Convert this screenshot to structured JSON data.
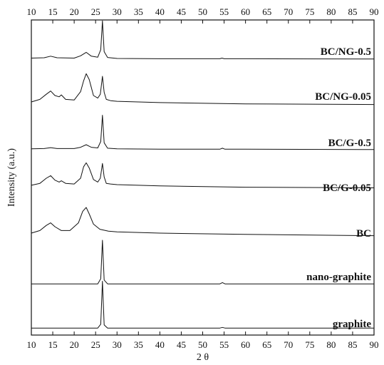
{
  "chart_data": {
    "type": "line",
    "xlabel": "2 θ",
    "ylabel": "Intensity (a.u.)",
    "xlim": [
      10,
      90
    ],
    "x_ticks": [
      "10",
      "15",
      "20",
      "25",
      "30",
      "35",
      "40",
      "45",
      "50",
      "55",
      "60",
      "65",
      "70",
      "75",
      "80",
      "85",
      "90"
    ],
    "grid": false,
    "legend": "none",
    "series": [
      {
        "name": "BC/NG-0.5",
        "x": [
          10,
          13,
          14.5,
          16,
          20,
          21.5,
          22.8,
          24,
          25.5,
          26.2,
          26.6,
          27.0,
          27.8,
          30,
          40,
          54,
          54.5,
          55,
          60,
          90
        ],
        "y": [
          5.0,
          5.5,
          8.0,
          5.5,
          5.0,
          8.5,
          14.0,
          8.0,
          6.5,
          18.0,
          63.0,
          15.0,
          6.0,
          4.5,
          4.0,
          4.0,
          5.0,
          4.0,
          4.0,
          3.5
        ]
      },
      {
        "name": "BC/NG-0.05",
        "x": [
          10,
          12,
          13.5,
          14.5,
          15.5,
          16.5,
          17.0,
          18.0,
          20,
          21.5,
          22.2,
          22.8,
          23.5,
          24.5,
          25.5,
          26.1,
          26.6,
          27.0,
          27.5,
          28.5,
          30,
          40,
          60,
          90
        ],
        "y": [
          10,
          14,
          22,
          27,
          20,
          18,
          21,
          14,
          13,
          26,
          43,
          54,
          45,
          20,
          16,
          22,
          50,
          25,
          14,
          12,
          11,
          9,
          7,
          6
        ]
      },
      {
        "name": "BC/G-0.5",
        "x": [
          10,
          13,
          14.5,
          16,
          20,
          21.5,
          22.8,
          24,
          25.5,
          26.2,
          26.6,
          27.0,
          27.8,
          30,
          40,
          54,
          54.6,
          55.2,
          60,
          90
        ],
        "y": [
          3.5,
          4.0,
          5.5,
          4.0,
          4.0,
          6.0,
          10.0,
          6.0,
          5.0,
          15.0,
          56.0,
          13.0,
          4.5,
          3.5,
          3.0,
          3.0,
          4.5,
          3.0,
          3.0,
          2.5
        ]
      },
      {
        "name": "BC/G-0.05",
        "x": [
          10,
          12,
          13.5,
          14.5,
          15.5,
          16.5,
          17.0,
          18.0,
          20,
          21.5,
          22.2,
          22.8,
          23.5,
          24.5,
          25.5,
          26.1,
          26.6,
          27.0,
          27.5,
          28.5,
          30,
          40,
          60,
          90
        ],
        "y": [
          9,
          12,
          20,
          24,
          17,
          14,
          16,
          12,
          11,
          20,
          38,
          44,
          36,
          18,
          14,
          20,
          43,
          22,
          12,
          11,
          10,
          8,
          6,
          5
        ]
      },
      {
        "name": "BC",
        "x": [
          10,
          12,
          13.5,
          14.5,
          15.5,
          17,
          19,
          21,
          22,
          22.8,
          23.5,
          24.5,
          26,
          28,
          30,
          40,
          60,
          90
        ],
        "y": [
          10,
          14,
          22,
          26,
          20,
          14,
          14,
          26,
          44,
          50,
          40,
          24,
          16,
          13,
          12,
          10,
          8,
          6
        ]
      },
      {
        "name": "nano-graphite",
        "x": [
          10,
          25.5,
          26.2,
          26.6,
          27.0,
          27.8,
          40,
          54,
          54.6,
          55.2,
          90
        ],
        "y": [
          2.0,
          2.0,
          10.0,
          70.0,
          8.0,
          2.0,
          2.0,
          2.0,
          4.0,
          2.0,
          2.0
        ]
      },
      {
        "name": "graphite",
        "x": [
          10,
          25.5,
          26.2,
          26.6,
          27.0,
          27.8,
          40,
          54,
          54.6,
          55.2,
          90
        ],
        "y": [
          2.0,
          2.0,
          8.0,
          75.0,
          7.0,
          2.0,
          2.0,
          2.0,
          3.0,
          2.0,
          2.0
        ]
      }
    ]
  }
}
